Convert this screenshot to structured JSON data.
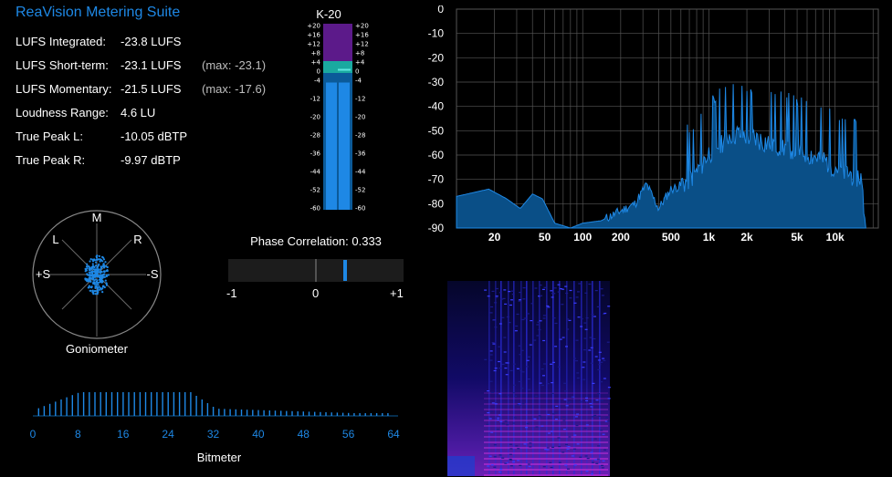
{
  "app": {
    "title": "ReaVision Metering Suite"
  },
  "stats": [
    {
      "label": "LUFS Integrated:",
      "value": "-23.8 LUFS",
      "max": ""
    },
    {
      "label": "LUFS Short-term:",
      "value": "-23.1 LUFS",
      "max": "(max: -23.1)"
    },
    {
      "label": "LUFS Momentary:",
      "value": "-21.5 LUFS",
      "max": "(max: -17.6)"
    },
    {
      "label": "Loudness Range:",
      "value": "4.6 LU",
      "max": ""
    },
    {
      "label": "True Peak L:",
      "value": "-10.05 dBTP",
      "max": ""
    },
    {
      "label": "True Peak R:",
      "value": "-9.97 dBTP",
      "max": ""
    }
  ],
  "kmeter": {
    "title": "K-20",
    "ticks": [
      "+20",
      "+16",
      "+12",
      "+8",
      "+4",
      "0",
      "-4",
      "-12",
      "-20",
      "-28",
      "-36",
      "-44",
      "-52",
      "-60"
    ],
    "level_l": -5,
    "level_r": -5,
    "peak": 1
  },
  "goniometer": {
    "label": "Goniometer",
    "axis_labels": {
      "m": "M",
      "l": "L",
      "r": "R",
      "plus_s": "+S",
      "minus_s": "-S"
    },
    "colors": {
      "dots": "#1e88e5"
    }
  },
  "phase": {
    "label": "Phase Correlation: 0.333",
    "value": 0.333,
    "ticks": [
      "-1",
      "0",
      "+1"
    ]
  },
  "bitmeter": {
    "label": "Bitmeter",
    "ticks": [
      "0",
      "8",
      "16",
      "24",
      "32",
      "40",
      "48",
      "56",
      "64"
    ]
  },
  "spectrum": {
    "y_ticks": [
      "0",
      "-10",
      "-20",
      "-30",
      "-40",
      "-50",
      "-60",
      "-70",
      "-80",
      "-90"
    ],
    "x_ticks": [
      "20",
      "50",
      "100",
      "200",
      "500",
      "1k",
      "2k",
      "5k",
      "10k"
    ],
    "colors": {
      "fill": "#0a4f87",
      "line": "#1e88e5"
    }
  },
  "colors": {
    "accent": "#1e88e5",
    "purple": "#5c1a8a",
    "teal": "#1aa9a0"
  }
}
